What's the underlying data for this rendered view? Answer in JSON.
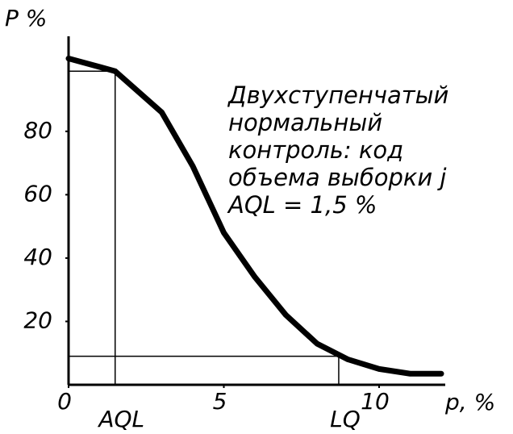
{
  "chart_data": {
    "type": "line",
    "ylabel": "P %",
    "xlabel": "p, %",
    "note": [
      "Двухступенчатый",
      "нормальный",
      "контроль: код",
      "объема выборки j",
      "AQL = 1,5 %"
    ],
    "x": [
      0,
      1.5,
      3,
      4,
      5,
      6,
      7,
      8,
      9,
      10,
      11,
      12
    ],
    "series": [
      {
        "color": "#000000",
        "values": [
          103,
          99,
          86,
          69,
          48,
          34,
          22,
          13,
          8,
          5,
          3.5,
          3.5
        ]
      }
    ],
    "xlim": [
      0,
      12
    ],
    "ylim": [
      0,
      110
    ],
    "xticks": [
      0,
      5,
      10
    ],
    "yticks": [
      20,
      40,
      60,
      80
    ],
    "aql": {
      "label": "AQL",
      "x": 1.5,
      "y": 99
    },
    "lq": {
      "label": "LQ",
      "x": 8.7,
      "y": 9
    }
  }
}
